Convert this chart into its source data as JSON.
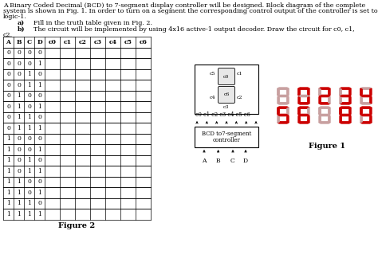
{
  "title_line1": "A Binary Coded Decimal (BCD) to 7-segment display controller will be designed. Block diagram of the complete",
  "title_line2": "system is shown in Fig. 1. In order to turn on a segment the corresponding control output of the controller is set to",
  "title_line3": "logic-1.",
  "item_a": "Fill in the truth table given in Fig. 2.",
  "item_b": "The circuit will be implemented by using 4x16 active-1 output decoder. Draw the circuit for c0, c1,",
  "item_b2": "c2.",
  "table_cols": [
    "A",
    "B",
    "C",
    "D",
    "c0",
    "c1",
    "c2",
    "c3",
    "c4",
    "c5",
    "c6"
  ],
  "table_rows": [
    [
      "0",
      "0",
      "0",
      "0",
      "",
      "",
      "",
      "",
      "",
      "",
      ""
    ],
    [
      "0",
      "0",
      "0",
      "1",
      "",
      "",
      "",
      "",
      "",
      "",
      ""
    ],
    [
      "0",
      "0",
      "1",
      "0",
      "",
      "",
      "",
      "",
      "",
      "",
      ""
    ],
    [
      "0",
      "0",
      "1",
      "1",
      "",
      "",
      "",
      "",
      "",
      "",
      ""
    ],
    [
      "0",
      "1",
      "0",
      "0",
      "",
      "",
      "",
      "",
      "",
      "",
      ""
    ],
    [
      "0",
      "1",
      "0",
      "1",
      "",
      "",
      "",
      "",
      "",
      "",
      ""
    ],
    [
      "0",
      "1",
      "1",
      "0",
      "",
      "",
      "",
      "",
      "",
      "",
      ""
    ],
    [
      "0",
      "1",
      "1",
      "1",
      "",
      "",
      "",
      "",
      "",
      "",
      ""
    ],
    [
      "1",
      "0",
      "0",
      "0",
      "",
      "",
      "",
      "",
      "",
      "",
      ""
    ],
    [
      "1",
      "0",
      "0",
      "1",
      "",
      "",
      "",
      "",
      "",
      "",
      ""
    ],
    [
      "1",
      "0",
      "1",
      "0",
      "",
      "",
      "",
      "",
      "",
      "",
      ""
    ],
    [
      "1",
      "0",
      "1",
      "1",
      "",
      "",
      "",
      "",
      "",
      "",
      ""
    ],
    [
      "1",
      "1",
      "0",
      "0",
      "",
      "",
      "",
      "",
      "",
      "",
      ""
    ],
    [
      "1",
      "1",
      "0",
      "1",
      "",
      "",
      "",
      "",
      "",
      "",
      ""
    ],
    [
      "1",
      "1",
      "1",
      "0",
      "",
      "",
      "",
      "",
      "",
      "",
      ""
    ],
    [
      "1",
      "1",
      "1",
      "1",
      "",
      "",
      "",
      "",
      "",
      "",
      ""
    ]
  ],
  "fig2_label": "Figure 2",
  "fig1_label": "Figure 1",
  "seg_color_on": "#cc0000",
  "seg_color_off": "#c8a0a0",
  "bg_color": "#ffffff",
  "top_digits": [
    "0",
    "0",
    "2",
    "3",
    "4"
  ],
  "bot_digits": [
    "5",
    "6",
    "X",
    "8",
    "9"
  ],
  "top_dim": [
    true,
    false,
    false,
    false,
    false
  ],
  "bot_dim": [
    false,
    false,
    true,
    false,
    false
  ],
  "digit_segs": {
    "0": [
      1,
      1,
      1,
      1,
      1,
      1,
      0
    ],
    "1": [
      0,
      1,
      1,
      0,
      0,
      0,
      0
    ],
    "2": [
      1,
      1,
      0,
      1,
      1,
      0,
      1
    ],
    "3": [
      1,
      1,
      1,
      1,
      0,
      0,
      1
    ],
    "4": [
      0,
      1,
      1,
      0,
      0,
      1,
      1
    ],
    "5": [
      1,
      0,
      1,
      1,
      0,
      1,
      1
    ],
    "6": [
      1,
      0,
      1,
      1,
      1,
      1,
      1
    ],
    "7": [
      1,
      1,
      1,
      0,
      0,
      0,
      0
    ],
    "8": [
      1,
      1,
      1,
      1,
      1,
      1,
      1
    ],
    "9": [
      1,
      1,
      1,
      1,
      0,
      1,
      1
    ],
    "X": [
      1,
      1,
      1,
      1,
      1,
      1,
      1
    ]
  }
}
